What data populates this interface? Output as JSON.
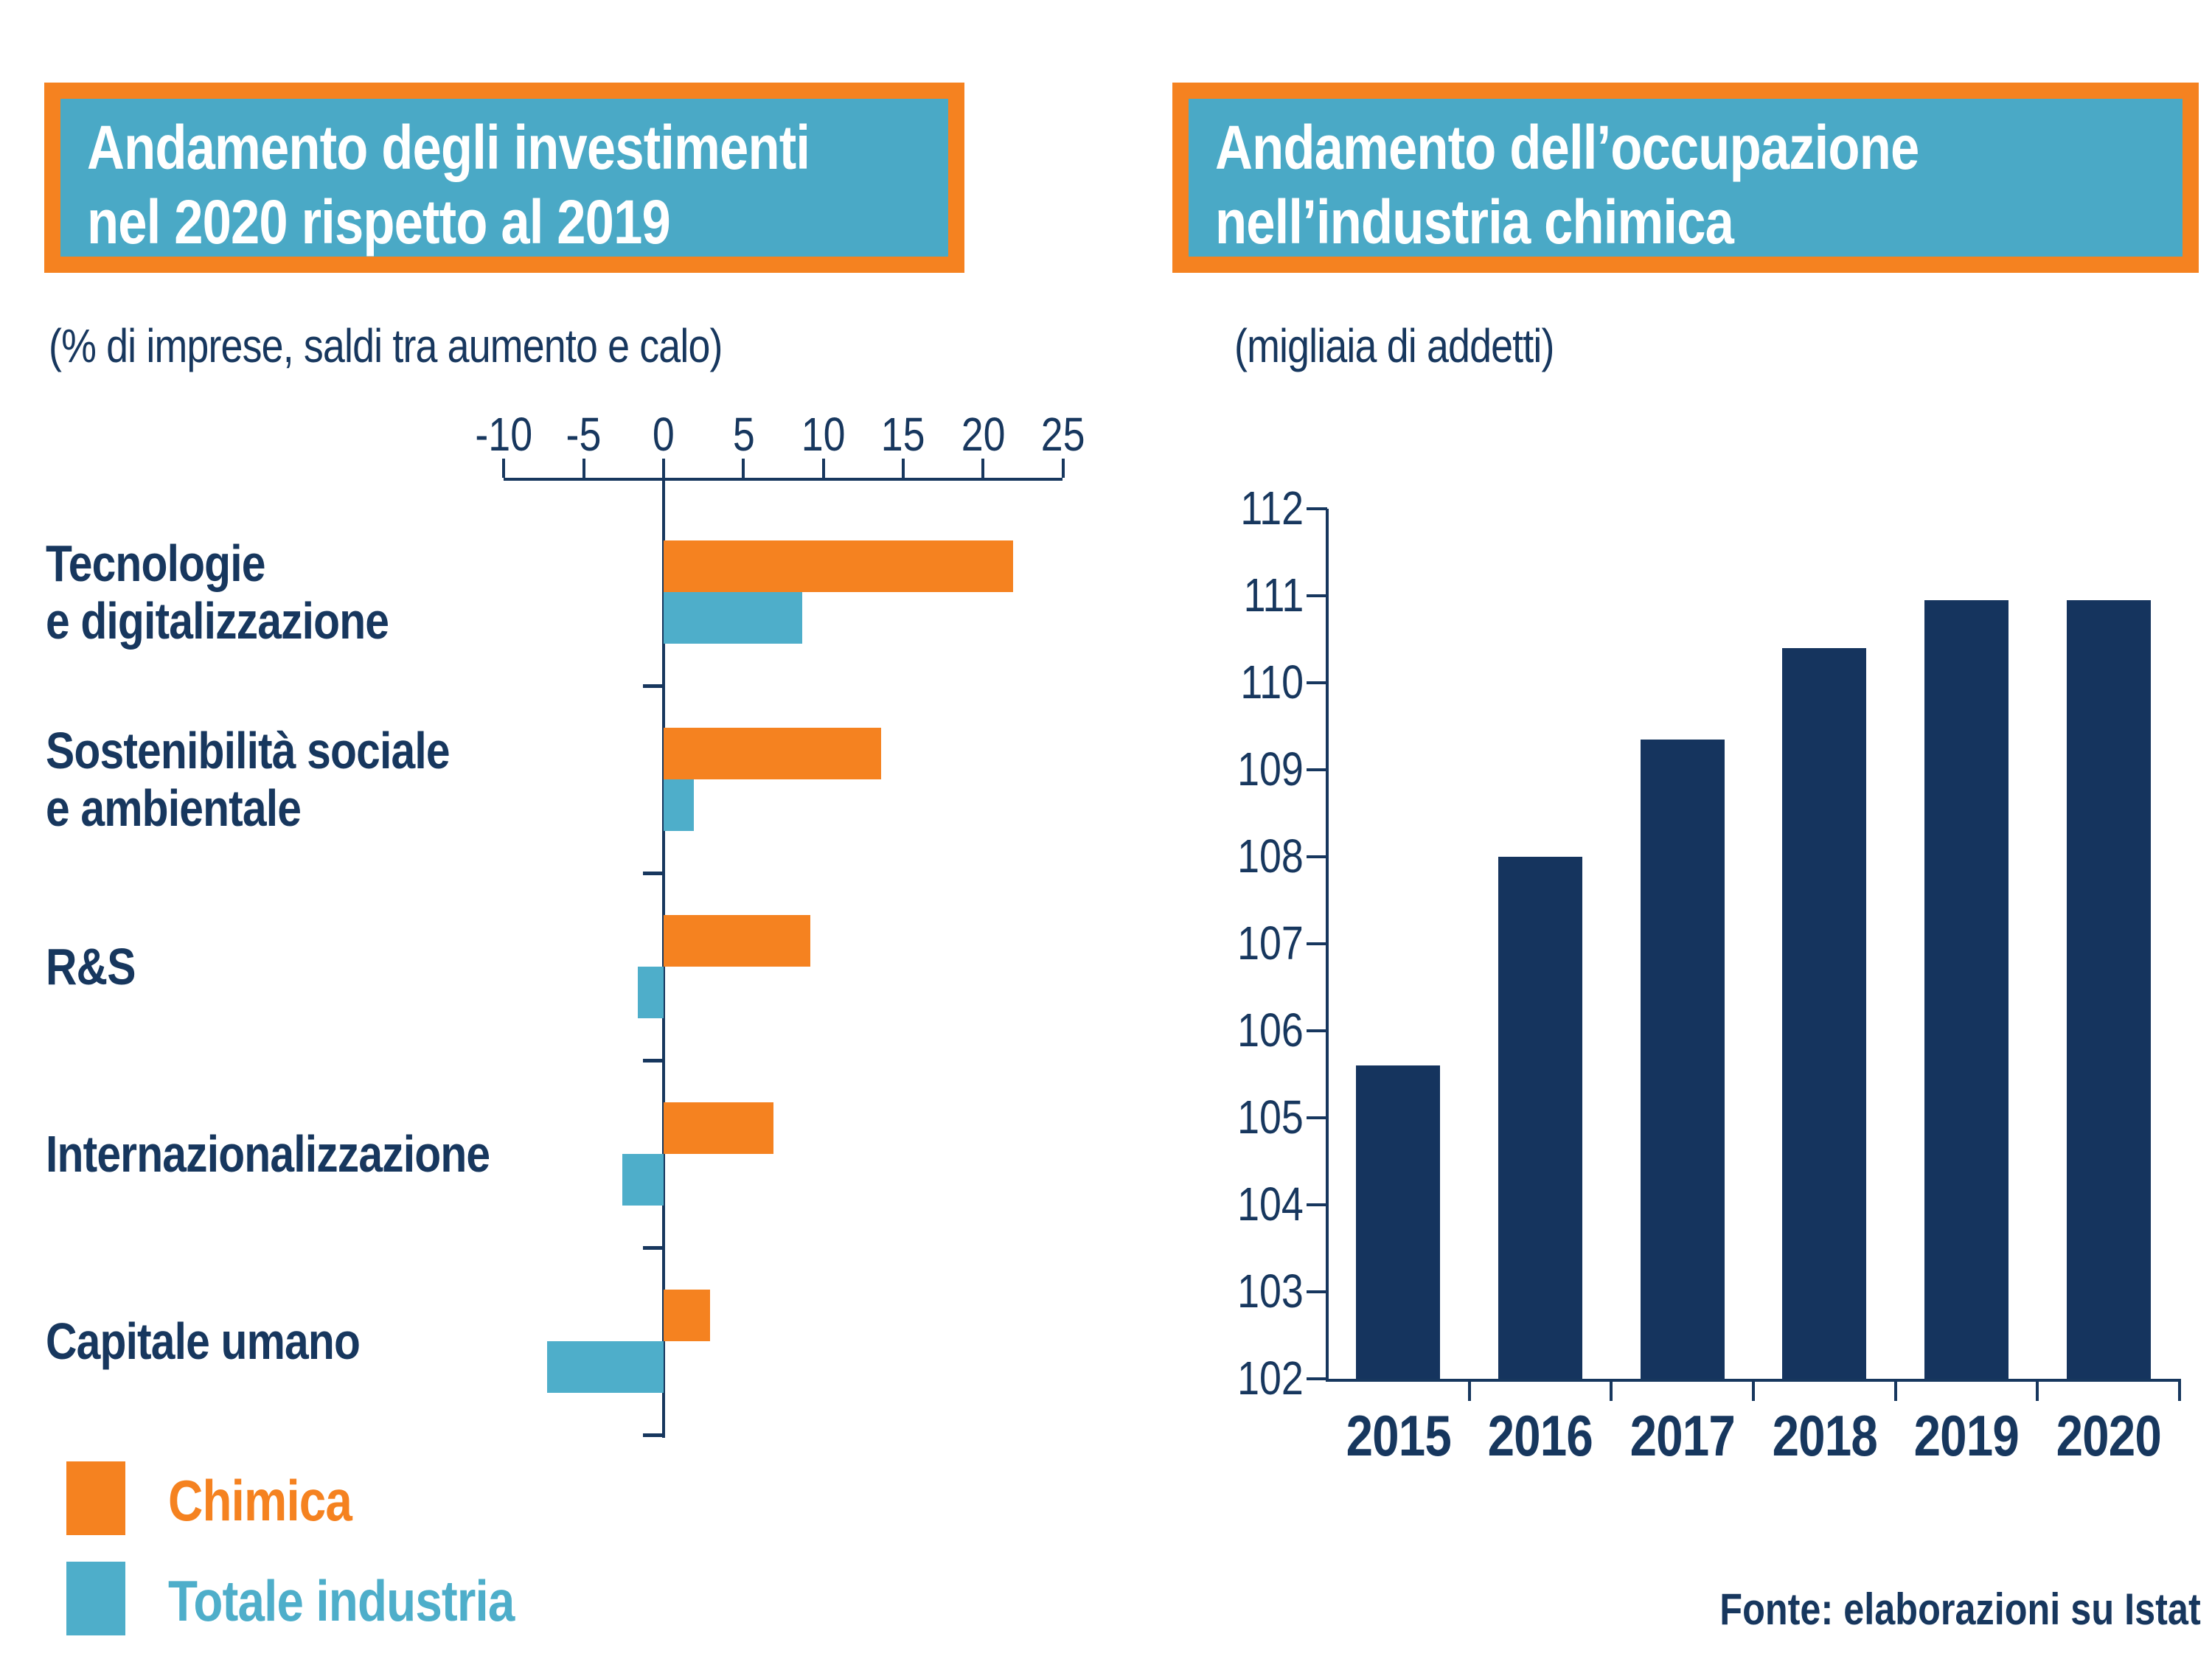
{
  "colors": {
    "orange": "#F58220",
    "teal_box": "#4AA9C6",
    "teal_bar": "#4EAECA",
    "navy": "#17375E",
    "bar_navy": "#15345E",
    "white": "#FFFFFF"
  },
  "footer": {
    "text": "Fonte: elaborazioni su Istat"
  },
  "chart_data": [
    {
      "id": "investimenti",
      "type": "bar",
      "orientation": "horizontal",
      "title_lines": [
        "Andamento degli investimenti",
        "nel 2020 rispetto al 2019"
      ],
      "subtitle": "(% di imprese, saldi tra aumento e calo)",
      "axis": {
        "min": -10,
        "max": 25,
        "tick_step": 5,
        "ticks": [
          -10,
          -5,
          0,
          5,
          10,
          15,
          20,
          25
        ]
      },
      "categories": [
        "Tecnologie e digitalizzazione",
        "Sostenibilità sociale e ambientale",
        "R&S",
        "Internazionalizzazione",
        "Capitale umano"
      ],
      "category_label_lines": [
        [
          "Tecnologie",
          "e digitalizzazione"
        ],
        [
          "Sostenibilità sociale",
          "e ambientale"
        ],
        [
          "R&S"
        ],
        [
          "Internazionalizzazione"
        ],
        [
          "Capitale umano"
        ]
      ],
      "series": [
        {
          "name": "Chimica",
          "color_key": "orange",
          "values": [
            21.9,
            13.6,
            9.2,
            6.9,
            2.9
          ]
        },
        {
          "name": "Totale industria",
          "color_key": "teal_bar",
          "values": [
            8.7,
            1.9,
            -1.6,
            -2.6,
            -7.3
          ]
        }
      ],
      "legend_position": "bottom-left",
      "grid": false
    },
    {
      "id": "occupazione",
      "type": "bar",
      "orientation": "vertical",
      "title_lines": [
        "Andamento dell’occupazione",
        "nell’industria chimica"
      ],
      "subtitle": "(migliaia di addetti)",
      "categories": [
        "2015",
        "2016",
        "2017",
        "2018",
        "2019",
        "2020"
      ],
      "values": [
        105.6,
        108,
        109.35,
        110.4,
        110.95,
        110.95
      ],
      "axis": {
        "min": 102,
        "max": 112,
        "tick_step": 1
      },
      "bar_color_key": "bar_navy",
      "grid": false
    }
  ]
}
